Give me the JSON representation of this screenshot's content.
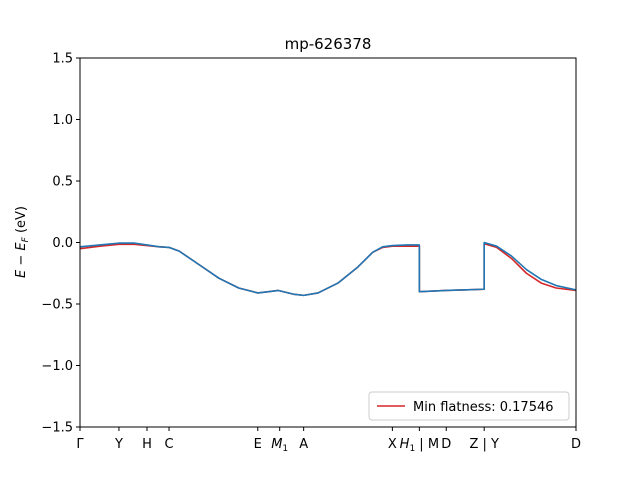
{
  "chart_data": {
    "type": "line",
    "title": "mp-626378",
    "ylabel": "E − E_F (eV)",
    "xlabel": "",
    "xlim": [
      0,
      1
    ],
    "ylim": [
      -1.5,
      1.5
    ],
    "yticks": [
      -1.5,
      -1.0,
      -0.5,
      0.0,
      0.5,
      1.0,
      1.5
    ],
    "ytick_labels": [
      "−1.5",
      "−1.0",
      "−0.5",
      "0.0",
      "0.5",
      "1.0",
      "1.5"
    ],
    "xticks": [
      {
        "pos": 0.0,
        "label": "Γ"
      },
      {
        "pos": 0.0785,
        "label": "Y"
      },
      {
        "pos": 0.1351,
        "label": "H"
      },
      {
        "pos": 0.1795,
        "label": "C"
      },
      {
        "pos": 0.3584,
        "label": "E"
      },
      {
        "pos": 0.4026,
        "label": "M1"
      },
      {
        "pos": 0.4509,
        "label": "A"
      },
      {
        "pos": 0.6298,
        "label": "X"
      },
      {
        "pos": 0.6842,
        "label": "H1 | M"
      },
      {
        "pos": 0.7384,
        "label": "D"
      },
      {
        "pos": 0.8149,
        "label": "Z | Y"
      },
      {
        "pos": 1.0,
        "label": "D"
      }
    ],
    "legend": {
      "location": "lower-right",
      "entries": [
        {
          "label": "Min flatness: 0.17546",
          "color": "#d62728"
        }
      ]
    },
    "series": [
      {
        "name": "Min flatness: 0.17546",
        "color": "#d62728",
        "points": [
          [
            0.0,
            -0.05
          ],
          [
            0.04,
            -0.03
          ],
          [
            0.0785,
            -0.015
          ],
          [
            0.11,
            -0.015
          ],
          [
            0.1351,
            -0.025
          ],
          [
            0.16,
            -0.035
          ],
          [
            0.1795,
            -0.04
          ],
          [
            0.2,
            -0.07
          ],
          [
            0.24,
            -0.18
          ],
          [
            0.28,
            -0.29
          ],
          [
            0.32,
            -0.37
          ],
          [
            0.3584,
            -0.41
          ],
          [
            0.38,
            -0.4
          ],
          [
            0.4,
            -0.39
          ],
          [
            0.43,
            -0.42
          ],
          [
            0.4509,
            -0.43
          ],
          [
            0.48,
            -0.41
          ],
          [
            0.52,
            -0.33
          ],
          [
            0.56,
            -0.2
          ],
          [
            0.59,
            -0.08
          ],
          [
            0.61,
            -0.04
          ],
          [
            0.6298,
            -0.03
          ],
          [
            0.66,
            -0.03
          ],
          [
            0.6842,
            -0.03
          ],
          [
            0.6842,
            -0.4
          ],
          [
            0.7384,
            -0.39
          ],
          [
            0.78,
            -0.385
          ],
          [
            0.8149,
            -0.38
          ],
          [
            0.8149,
            -0.01
          ],
          [
            0.84,
            -0.04
          ],
          [
            0.87,
            -0.13
          ],
          [
            0.9,
            -0.25
          ],
          [
            0.93,
            -0.33
          ],
          [
            0.96,
            -0.37
          ],
          [
            1.0,
            -0.39
          ]
        ]
      },
      {
        "name": "",
        "color": "#1f77b4",
        "points": [
          [
            0.0,
            -0.035
          ],
          [
            0.04,
            -0.02
          ],
          [
            0.0785,
            -0.005
          ],
          [
            0.11,
            -0.005
          ],
          [
            0.1351,
            -0.02
          ],
          [
            0.16,
            -0.035
          ],
          [
            0.1795,
            -0.04
          ],
          [
            0.2,
            -0.07
          ],
          [
            0.24,
            -0.18
          ],
          [
            0.28,
            -0.29
          ],
          [
            0.32,
            -0.37
          ],
          [
            0.3584,
            -0.41
          ],
          [
            0.38,
            -0.4
          ],
          [
            0.4,
            -0.39
          ],
          [
            0.43,
            -0.42
          ],
          [
            0.4509,
            -0.43
          ],
          [
            0.48,
            -0.41
          ],
          [
            0.52,
            -0.33
          ],
          [
            0.56,
            -0.2
          ],
          [
            0.59,
            -0.08
          ],
          [
            0.61,
            -0.035
          ],
          [
            0.6298,
            -0.025
          ],
          [
            0.66,
            -0.02
          ],
          [
            0.6842,
            -0.02
          ],
          [
            0.6842,
            -0.4
          ],
          [
            0.7384,
            -0.39
          ],
          [
            0.78,
            -0.385
          ],
          [
            0.8149,
            -0.38
          ],
          [
            0.8149,
            0.0
          ],
          [
            0.84,
            -0.03
          ],
          [
            0.87,
            -0.11
          ],
          [
            0.9,
            -0.22
          ],
          [
            0.93,
            -0.3
          ],
          [
            0.96,
            -0.35
          ],
          [
            1.0,
            -0.385
          ]
        ]
      }
    ],
    "grid": false
  }
}
